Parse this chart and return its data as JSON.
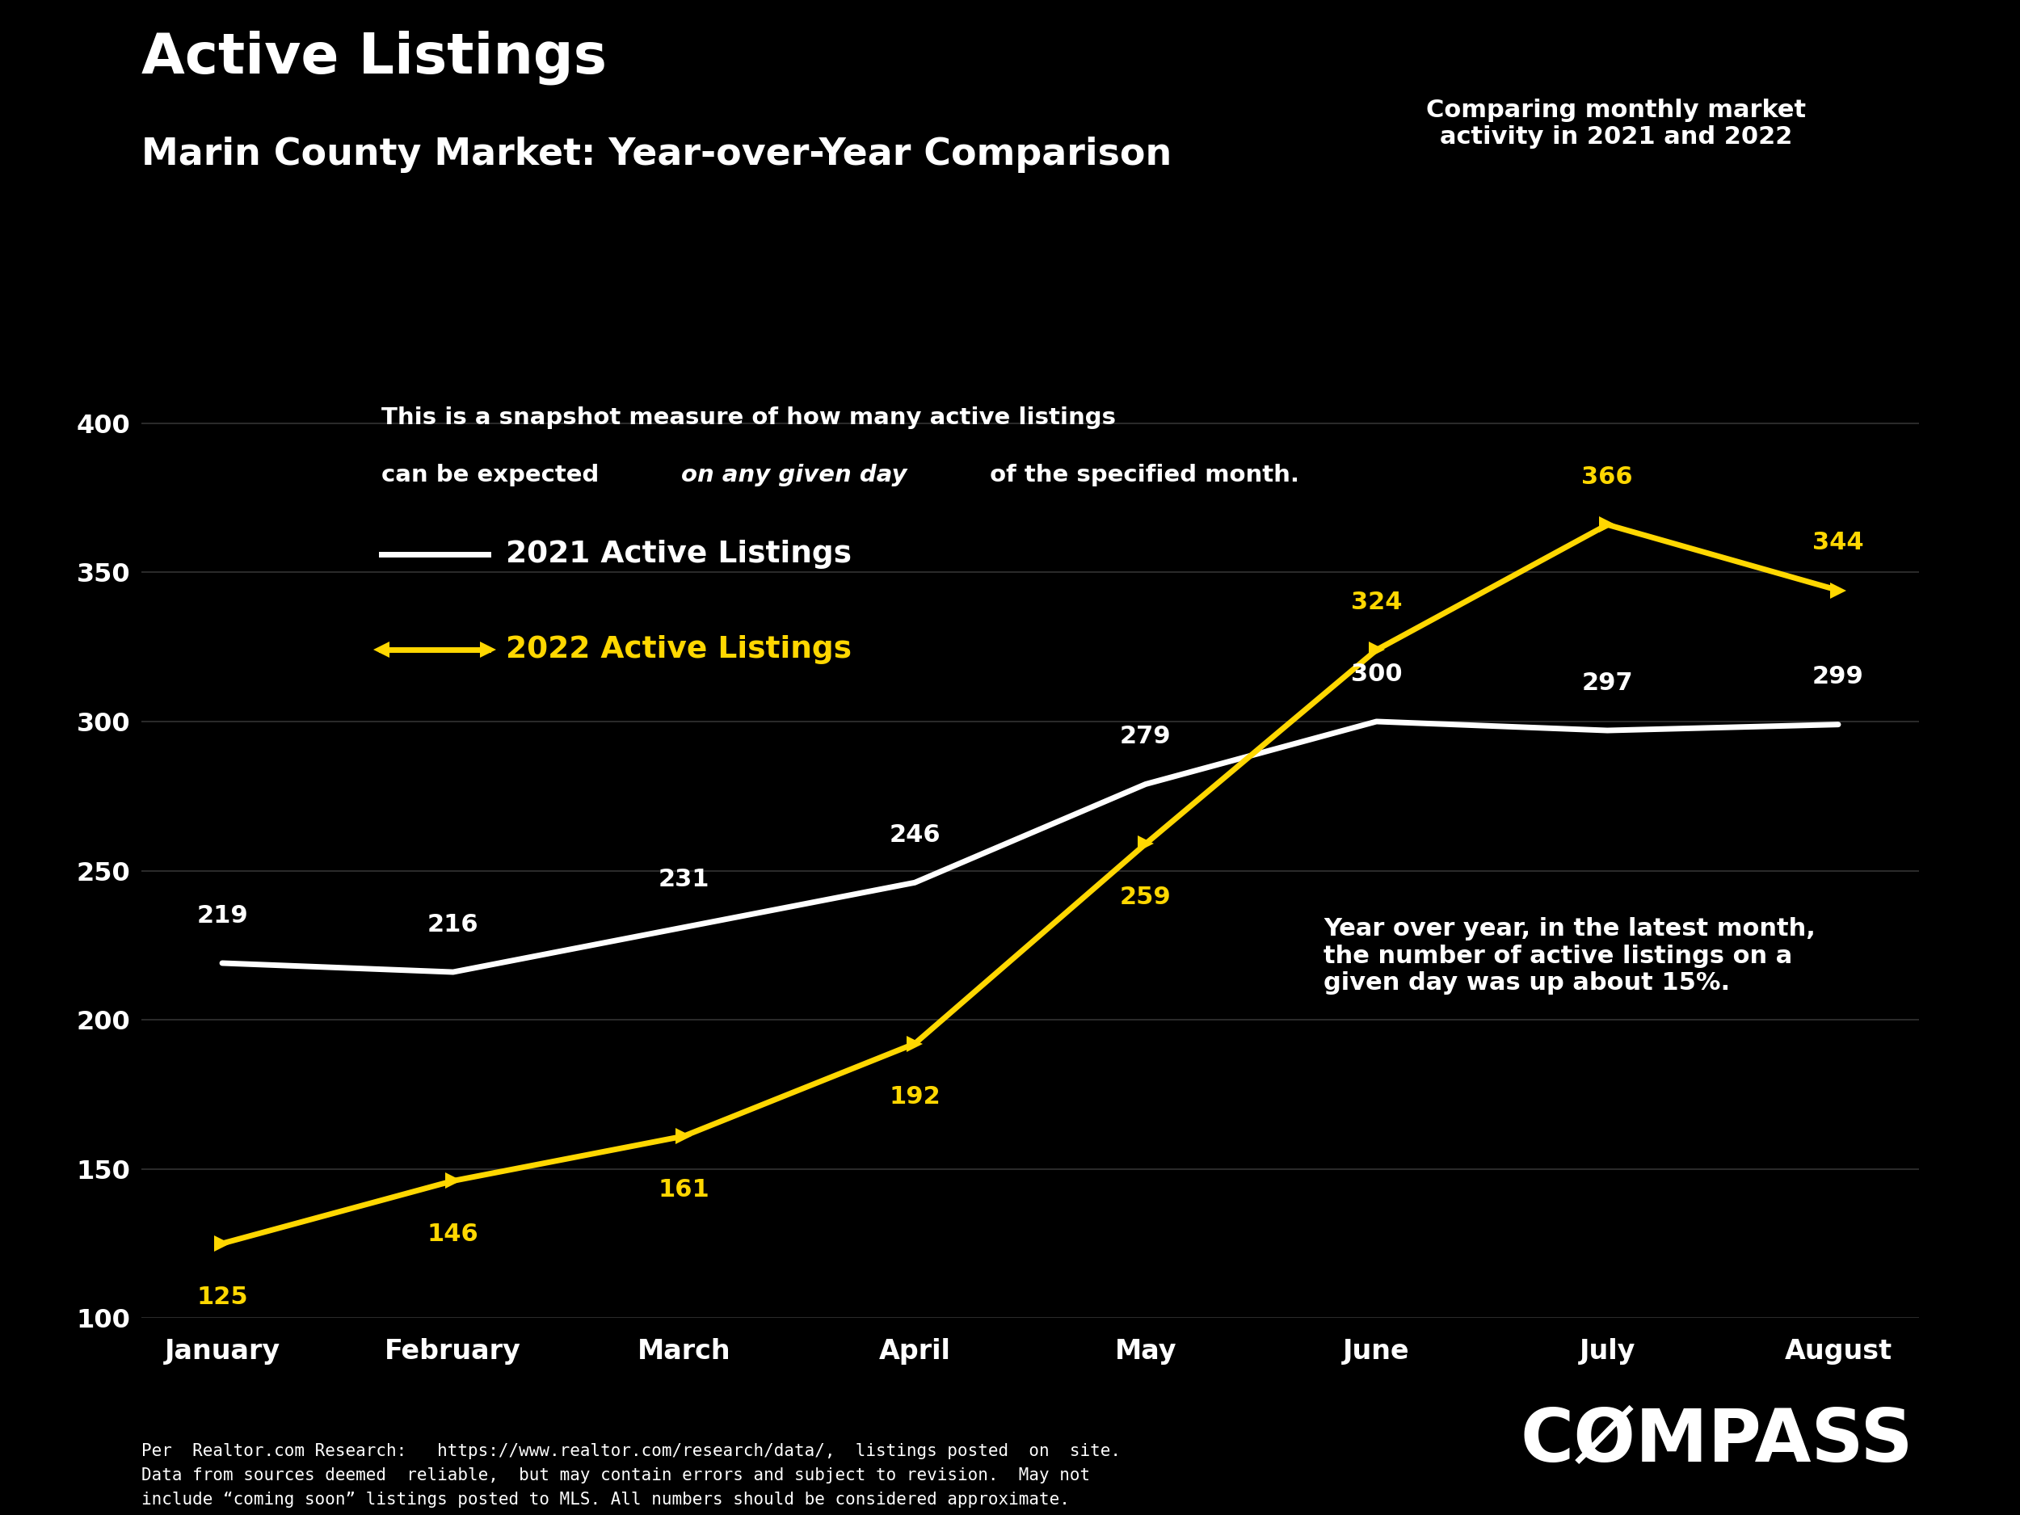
{
  "title": "Active Listings",
  "subtitle": "Marin County Market: Year-over-Year Comparison",
  "top_right_text": "Comparing monthly market\nactivity in 2021 and 2022",
  "side_annotation": "Year over year, in the latest month,\nthe number of active listings on a\ngiven day was up about 15%.",
  "months": [
    "January",
    "February",
    "March",
    "April",
    "May",
    "June",
    "July",
    "August"
  ],
  "values_2021": [
    219,
    216,
    231,
    246,
    279,
    300,
    297,
    299
  ],
  "values_2022": [
    125,
    146,
    161,
    192,
    259,
    324,
    366,
    344
  ],
  "color_2021": "#ffffff",
  "color_2022": "#FFD700",
  "background_color": "#000000",
  "text_color": "#ffffff",
  "ylim": [
    100,
    420
  ],
  "yticks": [
    100,
    150,
    200,
    250,
    300,
    350,
    400
  ],
  "legend_2021": "2021 Active Listings",
  "legend_2022": "2022 Active Listings",
  "footer_text": "Per  Realtor.com Research:   https://www.realtor.com/research/data/,  listings posted  on  site.\nData from sources deemed  reliable,  but may contain errors and subject to revision.  May not\ninclude “coming soon” listings posted to MLS. All numbers should be considered approximate.",
  "compass_text": "CØMPASS",
  "label_offsets_2021": [
    12,
    12,
    12,
    12,
    12,
    12,
    12,
    12
  ],
  "label_offsets_2022": [
    -14,
    -14,
    -14,
    -14,
    -14,
    12,
    12,
    12
  ]
}
